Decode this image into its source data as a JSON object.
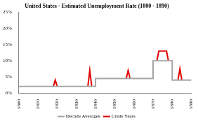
{
  "chart_data": {
    "type": "line",
    "title": "United States - Estimated Unemployment Rate (1800 - 1890)",
    "x": [
      1800,
      1818,
      1819,
      1820,
      1830,
      1836,
      1837,
      1838,
      1840,
      1840,
      1856,
      1857,
      1858,
      1870,
      1870,
      1872,
      1873,
      1877,
      1878,
      1880,
      1880,
      1883,
      1884,
      1885,
      1890
    ],
    "series": [
      {
        "name": "Decade Averages",
        "color": "#a6a6a6",
        "values": [
          2,
          2,
          2,
          2,
          2,
          2,
          2,
          2,
          2,
          4.5,
          4.5,
          4.5,
          4.5,
          4.5,
          10,
          10,
          10,
          10,
          10,
          10,
          4,
          4,
          4,
          4,
          4
        ]
      },
      {
        "name": "Crisis Years",
        "color": "#e00000",
        "values": [
          null,
          2,
          4,
          2,
          null,
          2,
          7,
          2,
          null,
          null,
          4.5,
          7,
          4.5,
          null,
          null,
          10,
          13,
          13,
          10,
          null,
          null,
          4,
          7.5,
          4,
          null
        ]
      }
    ],
    "xlim": [
      1800,
      1890
    ],
    "xticks": [
      1800,
      1810,
      1820,
      1830,
      1840,
      1850,
      1860,
      1870,
      1880,
      1890
    ],
    "ylim": [
      0,
      25
    ],
    "yticks": [
      {
        "value": 0,
        "label": "0%"
      },
      {
        "value": 5,
        "label": "5%"
      },
      {
        "value": 10,
        "label": "10%"
      },
      {
        "value": 15,
        "label": "15%"
      },
      {
        "value": 20,
        "label": "20%"
      },
      {
        "value": 25,
        "label": "25%"
      }
    ],
    "grid": false,
    "legend": "bottom"
  }
}
